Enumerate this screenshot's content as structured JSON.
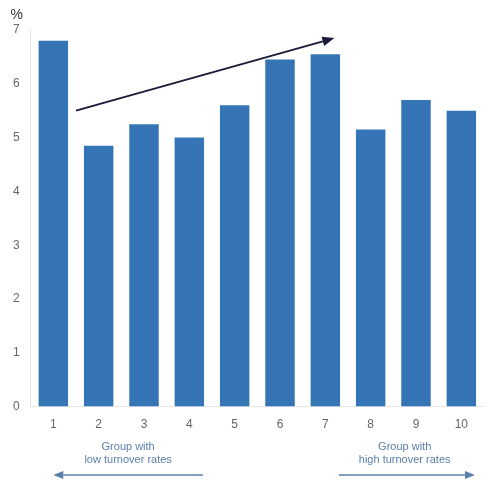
{
  "chart_data": {
    "type": "bar",
    "categories": [
      "1",
      "2",
      "3",
      "4",
      "5",
      "6",
      "7",
      "8",
      "9",
      "10"
    ],
    "values": [
      6.8,
      4.85,
      5.25,
      5.0,
      5.6,
      6.45,
      6.55,
      5.15,
      5.7,
      5.5
    ],
    "color": "#3575b5",
    "ylabel": "%",
    "ylim": [
      0,
      7
    ],
    "yticks": [
      0,
      1,
      2,
      3,
      4,
      5,
      6,
      7
    ],
    "grid": false,
    "legend": false,
    "annotations": [
      {
        "type": "arrow",
        "from": [
          1.5,
          5.5
        ],
        "to": [
          7.2,
          6.85
        ],
        "color": "#1a1a3a"
      },
      {
        "text": "Group with\nlow turnover rates",
        "arrow": "left",
        "color": "#5a7fa8"
      },
      {
        "text": "Group with\nhigh turnover rates",
        "arrow": "right",
        "color": "#5a7fa8"
      }
    ]
  }
}
